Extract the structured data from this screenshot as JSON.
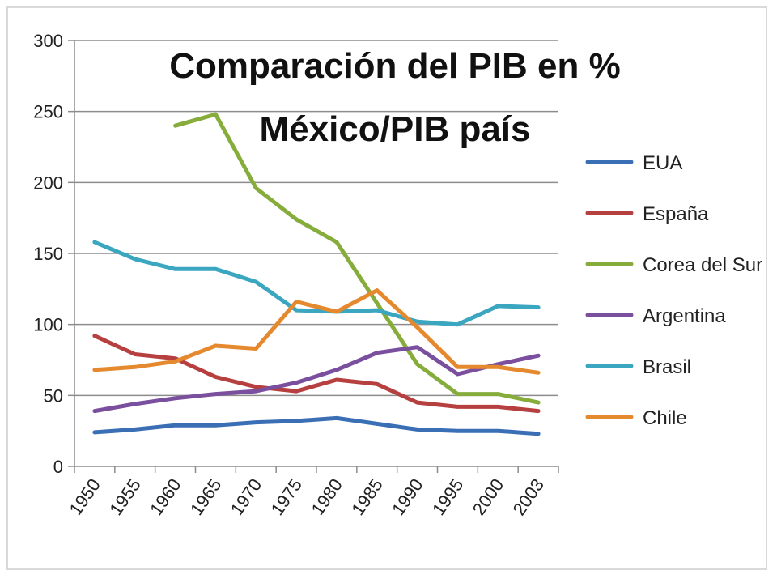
{
  "chart_data": {
    "type": "line",
    "title": [
      "Comparación del PIB en %",
      "México/PIB país"
    ],
    "categories": [
      "1950",
      "1955",
      "1960",
      "1965",
      "1970",
      "1975",
      "1980",
      "1985",
      "1990",
      "1995",
      "2000",
      "2003"
    ],
    "yticks": [
      "0",
      "50",
      "100",
      "150",
      "200",
      "250",
      "300"
    ],
    "ylim": [
      0,
      300
    ],
    "grid": true,
    "legend_position": "right",
    "series": [
      {
        "name": "EUA",
        "color": "#3a6fb5",
        "values": [
          24,
          26,
          29,
          29,
          31,
          32,
          34,
          30,
          26,
          25,
          25,
          23
        ]
      },
      {
        "name": "España",
        "color": "#b6403f",
        "values": [
          92,
          79,
          76,
          63,
          56,
          53,
          61,
          58,
          45,
          42,
          42,
          39
        ]
      },
      {
        "name": "Corea del Sur",
        "color": "#86ad3c",
        "values": [
          null,
          null,
          240,
          248,
          196,
          174,
          158,
          115,
          72,
          51,
          51,
          45
        ]
      },
      {
        "name": "Argentina",
        "color": "#7a4f9e",
        "values": [
          39,
          44,
          48,
          51,
          53,
          59,
          68,
          80,
          84,
          65,
          72,
          78
        ]
      },
      {
        "name": "Brasil",
        "color": "#3aa6c0",
        "values": [
          158,
          146,
          139,
          139,
          130,
          110,
          109,
          110,
          102,
          100,
          113,
          112
        ]
      },
      {
        "name": "Chile",
        "color": "#e5892f",
        "values": [
          68,
          70,
          74,
          85,
          83,
          116,
          109,
          124,
          98,
          70,
          70,
          66
        ]
      }
    ]
  }
}
